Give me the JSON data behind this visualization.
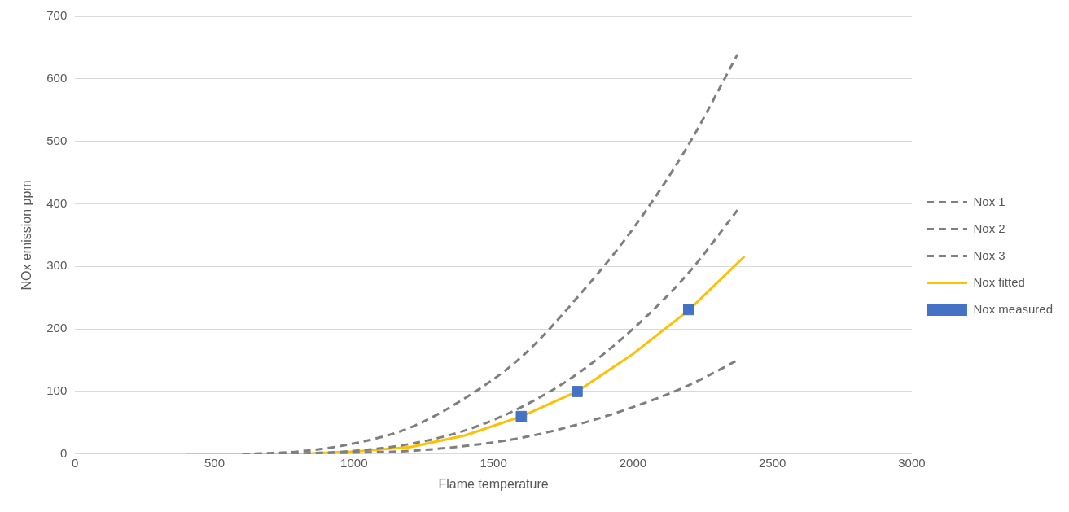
{
  "chart_data": {
    "type": "line",
    "xlabel": "Flame temperature",
    "ylabel": "NOx emission ppm",
    "xlim": [
      0,
      3000
    ],
    "xticks": [
      0,
      500,
      1000,
      1500,
      2000,
      2500,
      3000
    ],
    "ylim": [
      0,
      700
    ],
    "yticks": [
      0,
      100,
      200,
      300,
      400,
      500,
      600,
      700
    ],
    "grid": "y",
    "legend": "right",
    "series": [
      {
        "name": "Nox 1",
        "color": "#7f7f7f",
        "line_style": "dashed",
        "marker": "none",
        "x": [
          600,
          800,
          1000,
          1200,
          1400,
          1600,
          1800,
          2000,
          2200,
          2375
        ],
        "values": [
          0,
          4,
          17,
          42,
          90,
          155,
          250,
          360,
          495,
          639
        ]
      },
      {
        "name": "Nox 2",
        "color": "#7f7f7f",
        "line_style": "dashed",
        "marker": "none",
        "x": [
          600,
          800,
          1000,
          1200,
          1400,
          1600,
          1800,
          2000,
          2200,
          2375
        ],
        "values": [
          0,
          1,
          5,
          16,
          38,
          75,
          128,
          200,
          290,
          390
        ]
      },
      {
        "name": "Nox 3",
        "color": "#7f7f7f",
        "line_style": "dashed",
        "marker": "none",
        "x": [
          600,
          800,
          1000,
          1200,
          1400,
          1600,
          1800,
          2000,
          2200,
          2375
        ],
        "values": [
          0,
          0,
          2,
          5,
          13,
          26,
          47,
          75,
          110,
          150
        ]
      },
      {
        "name": "Nox fitted",
        "color": "#ffc000",
        "line_style": "solid",
        "marker": "none",
        "x": [
          400,
          600,
          800,
          1000,
          1200,
          1400,
          1600,
          1800,
          2000,
          2200,
          2400
        ],
        "values": [
          0,
          0,
          0,
          4,
          11,
          30,
          60,
          100,
          160,
          230,
          316
        ]
      },
      {
        "name": "Nox measured",
        "type": "scatter",
        "color": "#4472c4",
        "marker": "square",
        "x": [
          1600,
          1800,
          2200
        ],
        "values": [
          60,
          100,
          231
        ]
      }
    ]
  }
}
